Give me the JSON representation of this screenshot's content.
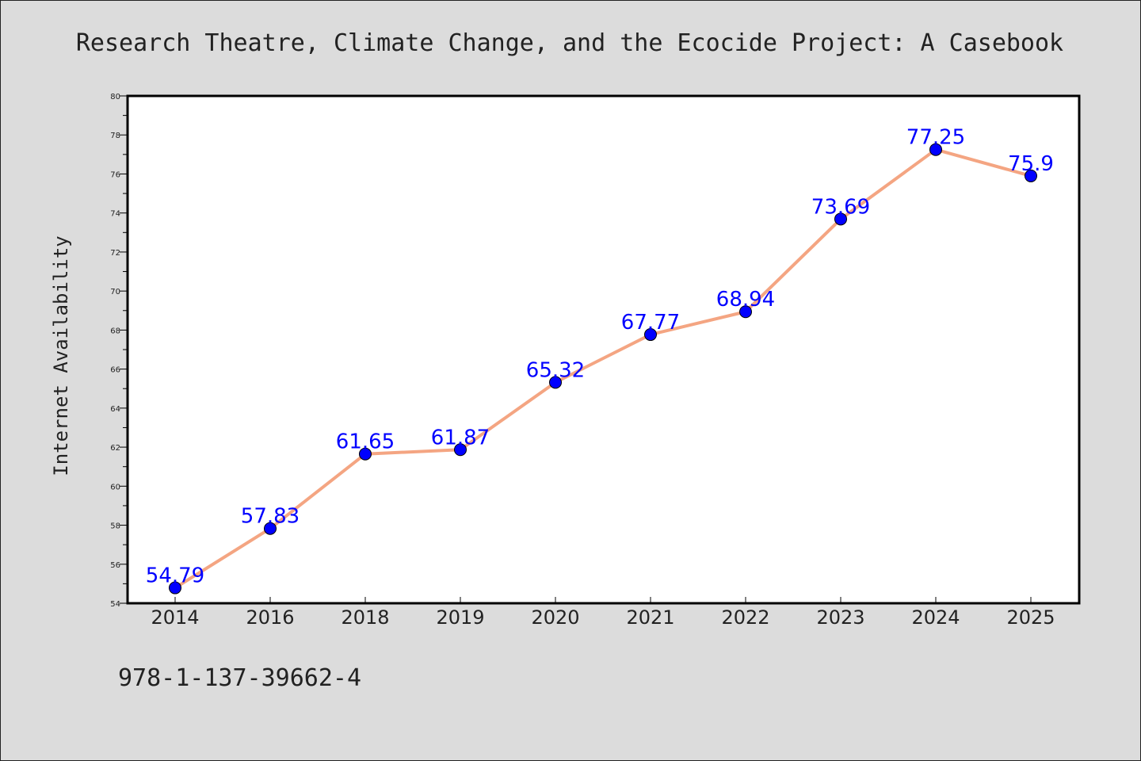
{
  "chart_data": {
    "type": "line",
    "title": "Research Theatre, Climate Change, and the Ecocide Project: A Casebook",
    "xlabel": "",
    "ylabel": "Internet Availability",
    "categories": [
      "2014",
      "2016",
      "2018",
      "2019",
      "2020",
      "2021",
      "2022",
      "2023",
      "2024",
      "2025"
    ],
    "series": [
      {
        "values": [
          54.79,
          57.83,
          61.65,
          61.87,
          65.32,
          67.77,
          68.94,
          73.69,
          77.25,
          75.9
        ],
        "labels": [
          "54.79",
          "57.83",
          "61.65",
          "61.87",
          "65.32",
          "67.77",
          "68.94",
          "73.69",
          "77.25",
          "75.9"
        ],
        "line_color": "#f4a582",
        "marker_color": "#0000ff",
        "label_color": "#0000ff"
      }
    ],
    "ylim": [
      54,
      80
    ],
    "yticks": [
      "54",
      "56",
      "58",
      "60",
      "62",
      "64",
      "66",
      "68",
      "70",
      "72",
      "74",
      "76",
      "78",
      "80"
    ],
    "grid": false,
    "legend": "none"
  },
  "footer": {
    "isbn": "978-1-137-39662-4"
  },
  "colors": {
    "background": "#dcdcdc",
    "plot_background": "#ffffff",
    "text": "#222222"
  }
}
